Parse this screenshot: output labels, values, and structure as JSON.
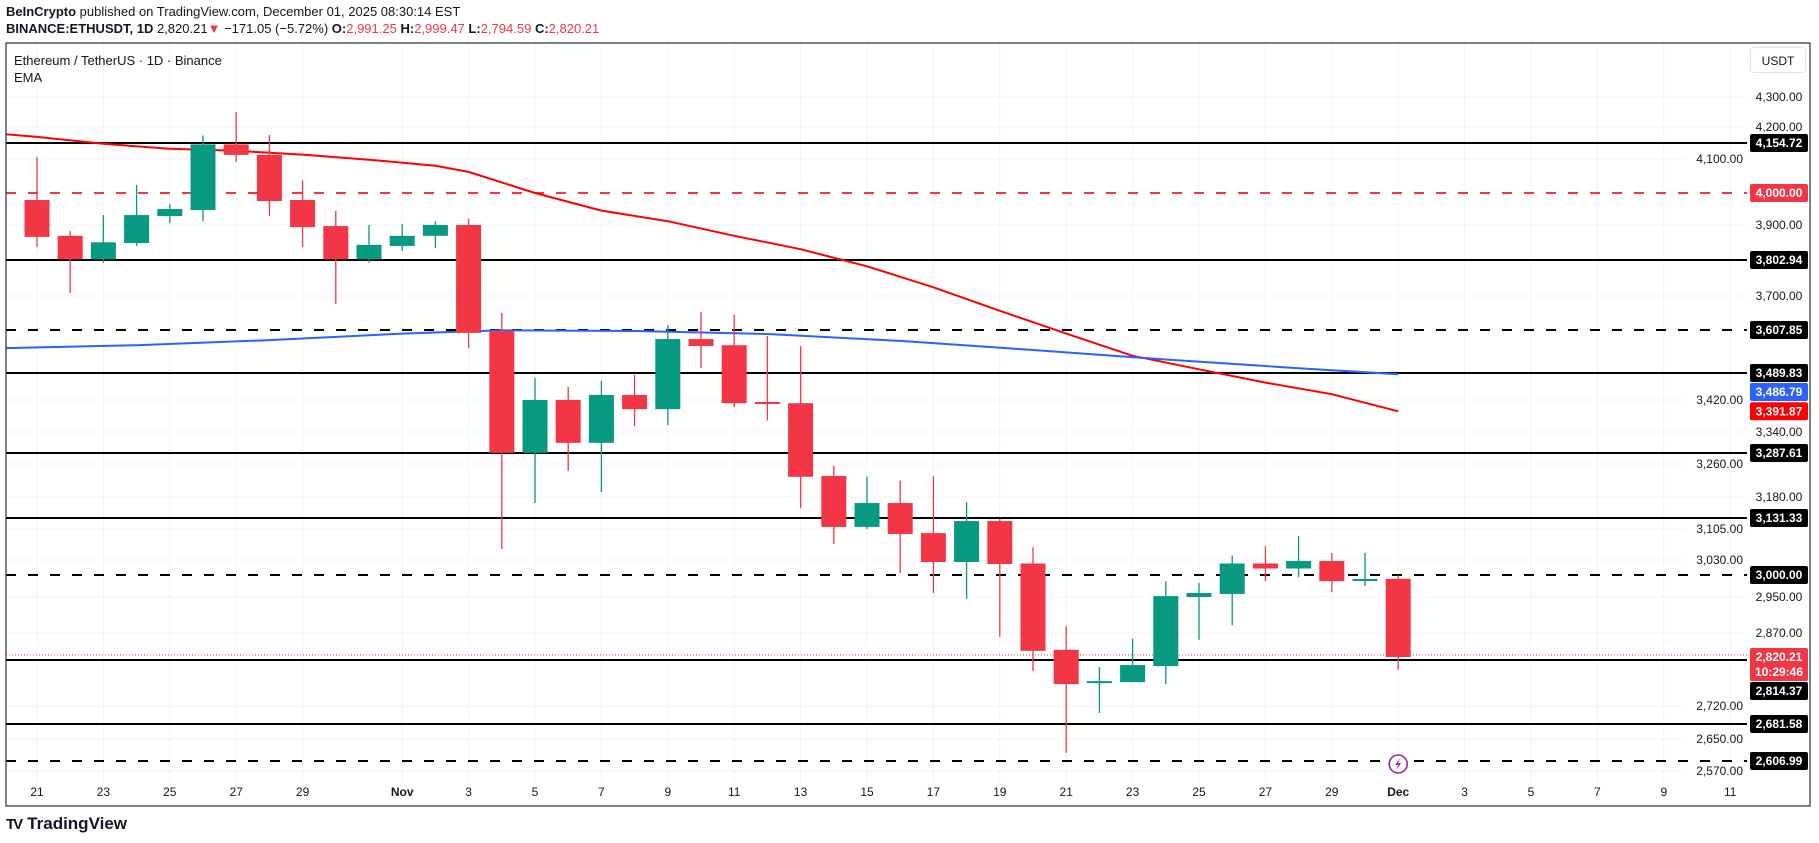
{
  "header": {
    "publisher": "BeInCrypto",
    "published_text": " published on TradingView.com, December 01, 2025 08:30:14 EST",
    "symbol": "BINANCE:ETHUSDT, 1D",
    "last": "2,820.21",
    "arrow": "▼",
    "change": "−171.05 (−5.72%)",
    "o_label": "O:",
    "o": "2,991.25",
    "h_label": "H:",
    "h": "2,999.47",
    "l_label": "L:",
    "l": "2,794.59",
    "c_label": "C:",
    "c": "2,820.21"
  },
  "legend": {
    "title": "Ethereum / TetherUS · 1D · Binance",
    "indicator": "EMA"
  },
  "currency_button": "USDT",
  "logo_text": "TradingView",
  "colors": {
    "up": "#089981",
    "down": "#f23645",
    "ema_fast": "#ff0000",
    "ema_slow": "#2962ff",
    "level": "#000000",
    "level_highlight": "#f23645",
    "event_icon": "#9c27b0"
  },
  "chart_data": {
    "type": "candlestick",
    "y_scale": "log",
    "grid": true,
    "y_ticks": [
      "4,300.00",
      "4,200.00",
      "4,100.00",
      "3,900.00",
      "3,700.00",
      "3,420.00",
      "3,340.00",
      "3,260.00",
      "3,180.00",
      "3,105.00",
      "3,030.00",
      "2,950.00",
      "2,870.00",
      "2,720.00",
      "2,650.00",
      "2,570.00"
    ],
    "x_ticks": [
      {
        "date": "2025-10-21",
        "label": "21"
      },
      {
        "date": "2025-10-23",
        "label": "23"
      },
      {
        "date": "2025-10-25",
        "label": "25"
      },
      {
        "date": "2025-10-27",
        "label": "27"
      },
      {
        "date": "2025-10-29",
        "label": "29"
      },
      {
        "date": "2025-11-01",
        "label": "Nov"
      },
      {
        "date": "2025-11-03",
        "label": "3"
      },
      {
        "date": "2025-11-05",
        "label": "5"
      },
      {
        "date": "2025-11-07",
        "label": "7"
      },
      {
        "date": "2025-11-09",
        "label": "9"
      },
      {
        "date": "2025-11-11",
        "label": "11"
      },
      {
        "date": "2025-11-13",
        "label": "13"
      },
      {
        "date": "2025-11-15",
        "label": "15"
      },
      {
        "date": "2025-11-17",
        "label": "17"
      },
      {
        "date": "2025-11-19",
        "label": "19"
      },
      {
        "date": "2025-11-21",
        "label": "21"
      },
      {
        "date": "2025-11-23",
        "label": "23"
      },
      {
        "date": "2025-11-25",
        "label": "25"
      },
      {
        "date": "2025-11-27",
        "label": "27"
      },
      {
        "date": "2025-11-29",
        "label": "29"
      },
      {
        "date": "2025-12-01",
        "label": "Dec"
      },
      {
        "date": "2025-12-03",
        "label": "3"
      },
      {
        "date": "2025-12-05",
        "label": "5"
      },
      {
        "date": "2025-12-07",
        "label": "7"
      },
      {
        "date": "2025-12-09",
        "label": "9"
      },
      {
        "date": "2025-12-11",
        "label": "11"
      }
    ],
    "candles_fields": [
      "date",
      "open",
      "high",
      "low",
      "close"
    ],
    "candles": [
      [
        "2025-10-21",
        3978,
        4107,
        3839,
        3867
      ],
      [
        "2025-10-22",
        3870,
        3883,
        3709,
        3805
      ],
      [
        "2025-10-23",
        3805,
        3931,
        3795,
        3852
      ],
      [
        "2025-10-24",
        3850,
        4024,
        3842,
        3931
      ],
      [
        "2025-10-25",
        3928,
        3966,
        3906,
        3950
      ],
      [
        "2025-10-26",
        3947,
        4176,
        3912,
        4150
      ],
      [
        "2025-10-27",
        4150,
        4250,
        4091,
        4114
      ],
      [
        "2025-10-28",
        4114,
        4177,
        3928,
        3975
      ],
      [
        "2025-10-29",
        3978,
        4037,
        3839,
        3894
      ],
      [
        "2025-10-30",
        3897,
        3944,
        3678,
        3805
      ],
      [
        "2025-10-31",
        3805,
        3900,
        3795,
        3845
      ],
      [
        "2025-11-01",
        3842,
        3903,
        3828,
        3870
      ],
      [
        "2025-11-02",
        3870,
        3912,
        3836,
        3900
      ],
      [
        "2025-11-03",
        3900,
        3920,
        3558,
        3600
      ],
      [
        "2025-11-04",
        3605,
        3654,
        3057,
        3288
      ],
      [
        "2025-11-05",
        3288,
        3477,
        3166,
        3420
      ],
      [
        "2025-11-06",
        3420,
        3454,
        3243,
        3313
      ],
      [
        "2025-11-07",
        3313,
        3469,
        3192,
        3433
      ],
      [
        "2025-11-08",
        3433,
        3485,
        3355,
        3397
      ],
      [
        "2025-11-09",
        3397,
        3621,
        3357,
        3583
      ],
      [
        "2025-11-10",
        3583,
        3657,
        3503,
        3564
      ],
      [
        "2025-11-11",
        3566,
        3649,
        3402,
        3412
      ],
      [
        "2025-11-12",
        3415,
        3591,
        3369,
        3410
      ],
      [
        "2025-11-13",
        3412,
        3564,
        3154,
        3229
      ],
      [
        "2025-11-14",
        3231,
        3256,
        3069,
        3110
      ],
      [
        "2025-11-15",
        3110,
        3229,
        3105,
        3166
      ],
      [
        "2025-11-16",
        3166,
        3220,
        3004,
        3093
      ],
      [
        "2025-11-17",
        3095,
        3230,
        2959,
        3026
      ],
      [
        "2025-11-18",
        3026,
        3168,
        2946,
        3124
      ],
      [
        "2025-11-19",
        3124,
        3130,
        2862,
        3022
      ],
      [
        "2025-11-20",
        3023,
        3061,
        2792,
        2833
      ],
      [
        "2025-11-21",
        2835,
        2885,
        2623,
        2765
      ],
      [
        "2025-11-22",
        2767,
        2800,
        2705,
        2771
      ],
      [
        "2025-11-23",
        2769,
        2858,
        2769,
        2804
      ],
      [
        "2025-11-24",
        2802,
        2986,
        2765,
        2952
      ],
      [
        "2025-11-25",
        2950,
        2982,
        2856,
        2959
      ],
      [
        "2025-11-26",
        2957,
        3041,
        2887,
        3023
      ],
      [
        "2025-11-27",
        3023,
        3063,
        2986,
        3013
      ],
      [
        "2025-11-28",
        3013,
        3088,
        2995,
        3028
      ],
      [
        "2025-11-29",
        3028,
        3047,
        2961,
        2986
      ],
      [
        "2025-11-30",
        2989,
        3047,
        2975,
        2991
      ],
      [
        "2025-12-01",
        2991.25,
        2999.47,
        2794.59,
        2820.21
      ]
    ],
    "ema_series": [
      {
        "color": "#ff0000",
        "points": [
          [
            "2025-10-20",
            4180
          ],
          [
            "2025-10-21",
            4172
          ],
          [
            "2025-10-23",
            4152
          ],
          [
            "2025-10-25",
            4135
          ],
          [
            "2025-10-27",
            4128
          ],
          [
            "2025-10-29",
            4115
          ],
          [
            "2025-10-31",
            4098
          ],
          [
            "2025-11-02",
            4080
          ],
          [
            "2025-11-03",
            4062
          ],
          [
            "2025-11-05",
            4000
          ],
          [
            "2025-11-07",
            3945
          ],
          [
            "2025-11-09",
            3912
          ],
          [
            "2025-11-11",
            3870
          ],
          [
            "2025-11-13",
            3833
          ],
          [
            "2025-11-15",
            3785
          ],
          [
            "2025-11-17",
            3725
          ],
          [
            "2025-11-19",
            3660
          ],
          [
            "2025-11-21",
            3598
          ],
          [
            "2025-11-23",
            3537
          ],
          [
            "2025-11-25",
            3500
          ],
          [
            "2025-11-27",
            3465
          ],
          [
            "2025-11-29",
            3435
          ],
          [
            "2025-12-01",
            3391.87
          ]
        ]
      },
      {
        "color": "#2962ff",
        "points": [
          [
            "2025-10-20",
            3558
          ],
          [
            "2025-10-24",
            3566
          ],
          [
            "2025-10-28",
            3580
          ],
          [
            "2025-11-01",
            3598
          ],
          [
            "2025-11-04",
            3607
          ],
          [
            "2025-11-08",
            3605
          ],
          [
            "2025-11-12",
            3597
          ],
          [
            "2025-11-16",
            3578
          ],
          [
            "2025-11-20",
            3553
          ],
          [
            "2025-11-24",
            3527
          ],
          [
            "2025-11-28",
            3503
          ],
          [
            "2025-12-01",
            3486.79
          ]
        ]
      }
    ],
    "levels": [
      {
        "value": 4154.72,
        "label": "4,154.72",
        "style": "solid",
        "color": "#000000"
      },
      {
        "value": 4000.0,
        "label": "4,000.00",
        "style": "dashed",
        "color": "#f23645"
      },
      {
        "value": 3802.94,
        "label": "3,802.94",
        "style": "solid",
        "color": "#000000"
      },
      {
        "value": 3607.85,
        "label": "3,607.85",
        "style": "dashed",
        "color": "#000000"
      },
      {
        "value": 3489.83,
        "label": "3,489.83",
        "style": "solid",
        "color": "#000000"
      },
      {
        "value": 3287.61,
        "label": "3,287.61",
        "style": "solid",
        "color": "#000000"
      },
      {
        "value": 3131.33,
        "label": "3,131.33",
        "style": "solid",
        "color": "#000000"
      },
      {
        "value": 3000.0,
        "label": "3,000.00",
        "style": "dashed",
        "color": "#000000"
      },
      {
        "value": 2814.37,
        "label": "2,814.37",
        "style": "solid",
        "color": "#000000"
      },
      {
        "value": 2681.58,
        "label": "2,681.58",
        "style": "solid",
        "color": "#000000"
      },
      {
        "value": 2606.99,
        "label": "2,606.99",
        "style": "dashed",
        "color": "#000000"
      }
    ],
    "value_labels": [
      {
        "value": 3486.79,
        "label": "3,486.79",
        "color": "#2962ff"
      },
      {
        "value": 3391.87,
        "label": "3,391.87",
        "color": "#ff0000"
      }
    ],
    "last_price": {
      "value": 2820.21,
      "label": "2,820.21",
      "countdown": "10:29:46",
      "color": "#f23645"
    },
    "event_marker": {
      "date": "2025-12-01",
      "icon": "lightning-icon"
    }
  }
}
